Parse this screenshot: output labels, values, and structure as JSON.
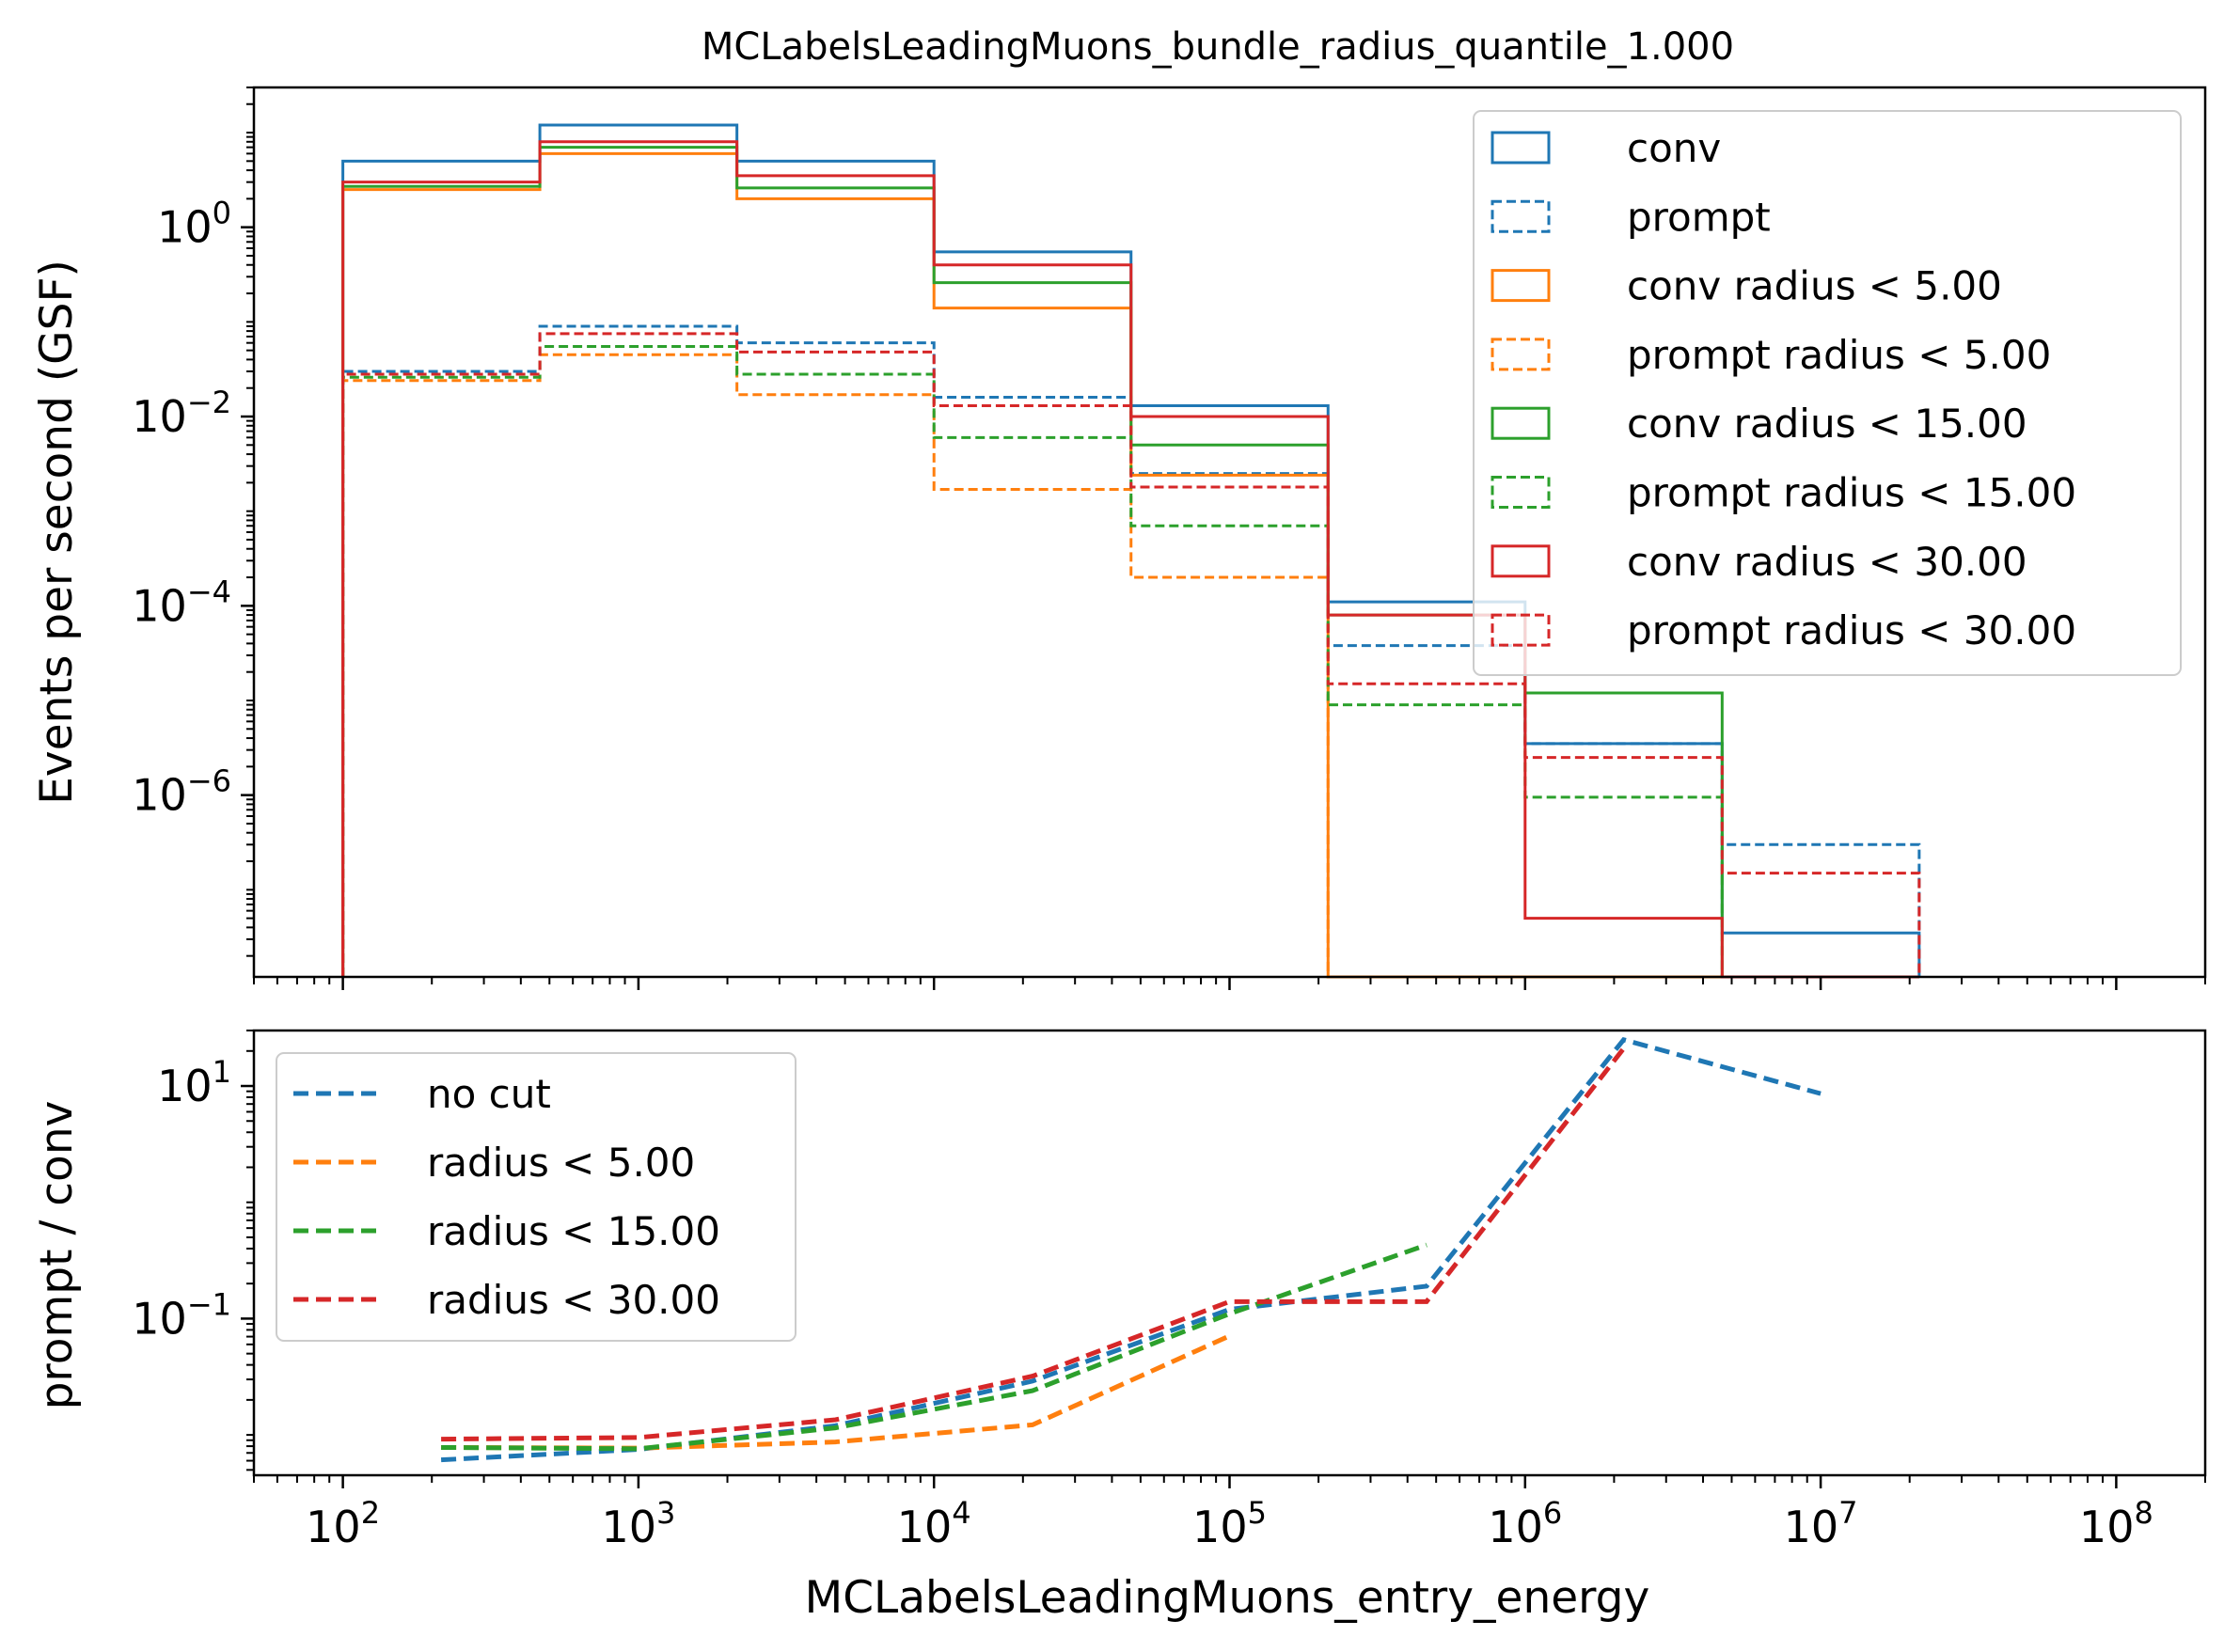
{
  "colors": {
    "blue": "#1f77b4",
    "orange": "#ff7f0e",
    "green": "#2ca02c",
    "red": "#d62728"
  },
  "chart_data": [
    {
      "type": "step-histogram",
      "title": "MCLabelsLeadingMuons_bundle_radius_quantile_1.000",
      "xlabel": "",
      "ylabel": "Events per second (GSF)",
      "xscale": "log",
      "yscale": "log",
      "xlim": [
        50,
        200000000.0
      ],
      "ylim": [
        1.2e-08,
        30
      ],
      "yticks": [
        {
          "value": 1,
          "exp": "0"
        },
        {
          "value": 0.01,
          "exp": "−2"
        },
        {
          "value": 0.0001,
          "exp": "−4"
        },
        {
          "value": 1e-06,
          "exp": "−6"
        }
      ],
      "bin_edges": [
        100,
        464,
        2154,
        10000,
        46416,
        215443,
        1000000,
        4641589,
        21544347
      ],
      "legend_position": "top-right",
      "series": [
        {
          "name": "conv",
          "color": "blue",
          "style": "solid",
          "values": [
            5.0,
            12.0,
            5.0,
            0.55,
            0.013,
            0.00011,
            3.5e-06,
            3.5e-08
          ]
        },
        {
          "name": "prompt",
          "color": "blue",
          "style": "dashed",
          "values": [
            0.03,
            0.09,
            0.06,
            0.016,
            0.0025,
            3.8e-05,
            3.5e-06,
            3e-07
          ]
        },
        {
          "name": "conv radius < 5.00",
          "color": "orange",
          "style": "solid",
          "values": [
            2.5,
            6.0,
            2.0,
            0.14,
            0.0024,
            0,
            0,
            0
          ]
        },
        {
          "name": "prompt radius < 5.00",
          "color": "orange",
          "style": "dashed",
          "values": [
            0.024,
            0.045,
            0.017,
            0.0017,
            0.0002,
            0,
            0,
            0
          ]
        },
        {
          "name": "conv radius < 15.00",
          "color": "green",
          "style": "solid",
          "values": [
            2.7,
            7.0,
            2.6,
            0.26,
            0.005,
            8e-05,
            1.2e-05,
            0
          ]
        },
        {
          "name": "prompt radius < 15.00",
          "color": "green",
          "style": "dashed",
          "values": [
            0.026,
            0.055,
            0.028,
            0.006,
            0.0007,
            9e-06,
            9.5e-07,
            0
          ]
        },
        {
          "name": "conv radius < 30.00",
          "color": "red",
          "style": "solid",
          "values": [
            3.0,
            8.0,
            3.5,
            0.4,
            0.01,
            8e-05,
            5e-08,
            0
          ]
        },
        {
          "name": "prompt radius < 30.00",
          "color": "red",
          "style": "dashed",
          "values": [
            0.028,
            0.075,
            0.048,
            0.013,
            0.0018,
            1.5e-05,
            2.5e-06,
            1.5e-07
          ]
        }
      ]
    },
    {
      "type": "line",
      "title": "",
      "xlabel": "MCLabelsLeadingMuons_entry_energy",
      "ylabel": "prompt / conv",
      "xscale": "log",
      "yscale": "log",
      "xlim": [
        50,
        200000000.0
      ],
      "ylim": [
        0.0045,
        30
      ],
      "xticks": [
        {
          "value": 100,
          "exp": "2"
        },
        {
          "value": 1000,
          "exp": "3"
        },
        {
          "value": 10000,
          "exp": "4"
        },
        {
          "value": 100000,
          "exp": "5"
        },
        {
          "value": 1000000,
          "exp": "6"
        },
        {
          "value": 10000000,
          "exp": "7"
        },
        {
          "value": 100000000,
          "exp": "8"
        }
      ],
      "yticks": [
        {
          "value": 10,
          "exp": "1"
        },
        {
          "value": 0.1,
          "exp": "−1"
        }
      ],
      "legend_position": "top-left",
      "series": [
        {
          "name": "no cut",
          "color": "blue",
          "x": [
            215,
            1000,
            4642,
            21544,
            100000,
            464159,
            2154435,
            10000000
          ],
          "y": [
            0.0061,
            0.0075,
            0.012,
            0.029,
            0.12,
            0.19,
            25,
            8.6
          ]
        },
        {
          "name": "radius < 5.00",
          "color": "orange",
          "x": [
            215,
            1000,
            4642,
            21544,
            100000
          ],
          "y": [
            0.0078,
            0.0077,
            0.0087,
            0.0122,
            0.071
          ]
        },
        {
          "name": "radius < 15.00",
          "color": "green",
          "x": [
            215,
            1000,
            4642,
            21544,
            100000,
            464159
          ],
          "y": [
            0.0078,
            0.0076,
            0.0115,
            0.024,
            0.11,
            0.43
          ]
        },
        {
          "name": "radius < 30.00",
          "color": "red",
          "x": [
            215,
            1000,
            4642,
            21544,
            100000,
            464159,
            2154435
          ],
          "y": [
            0.0092,
            0.0095,
            0.0135,
            0.032,
            0.14,
            0.14,
            21
          ]
        }
      ]
    }
  ]
}
